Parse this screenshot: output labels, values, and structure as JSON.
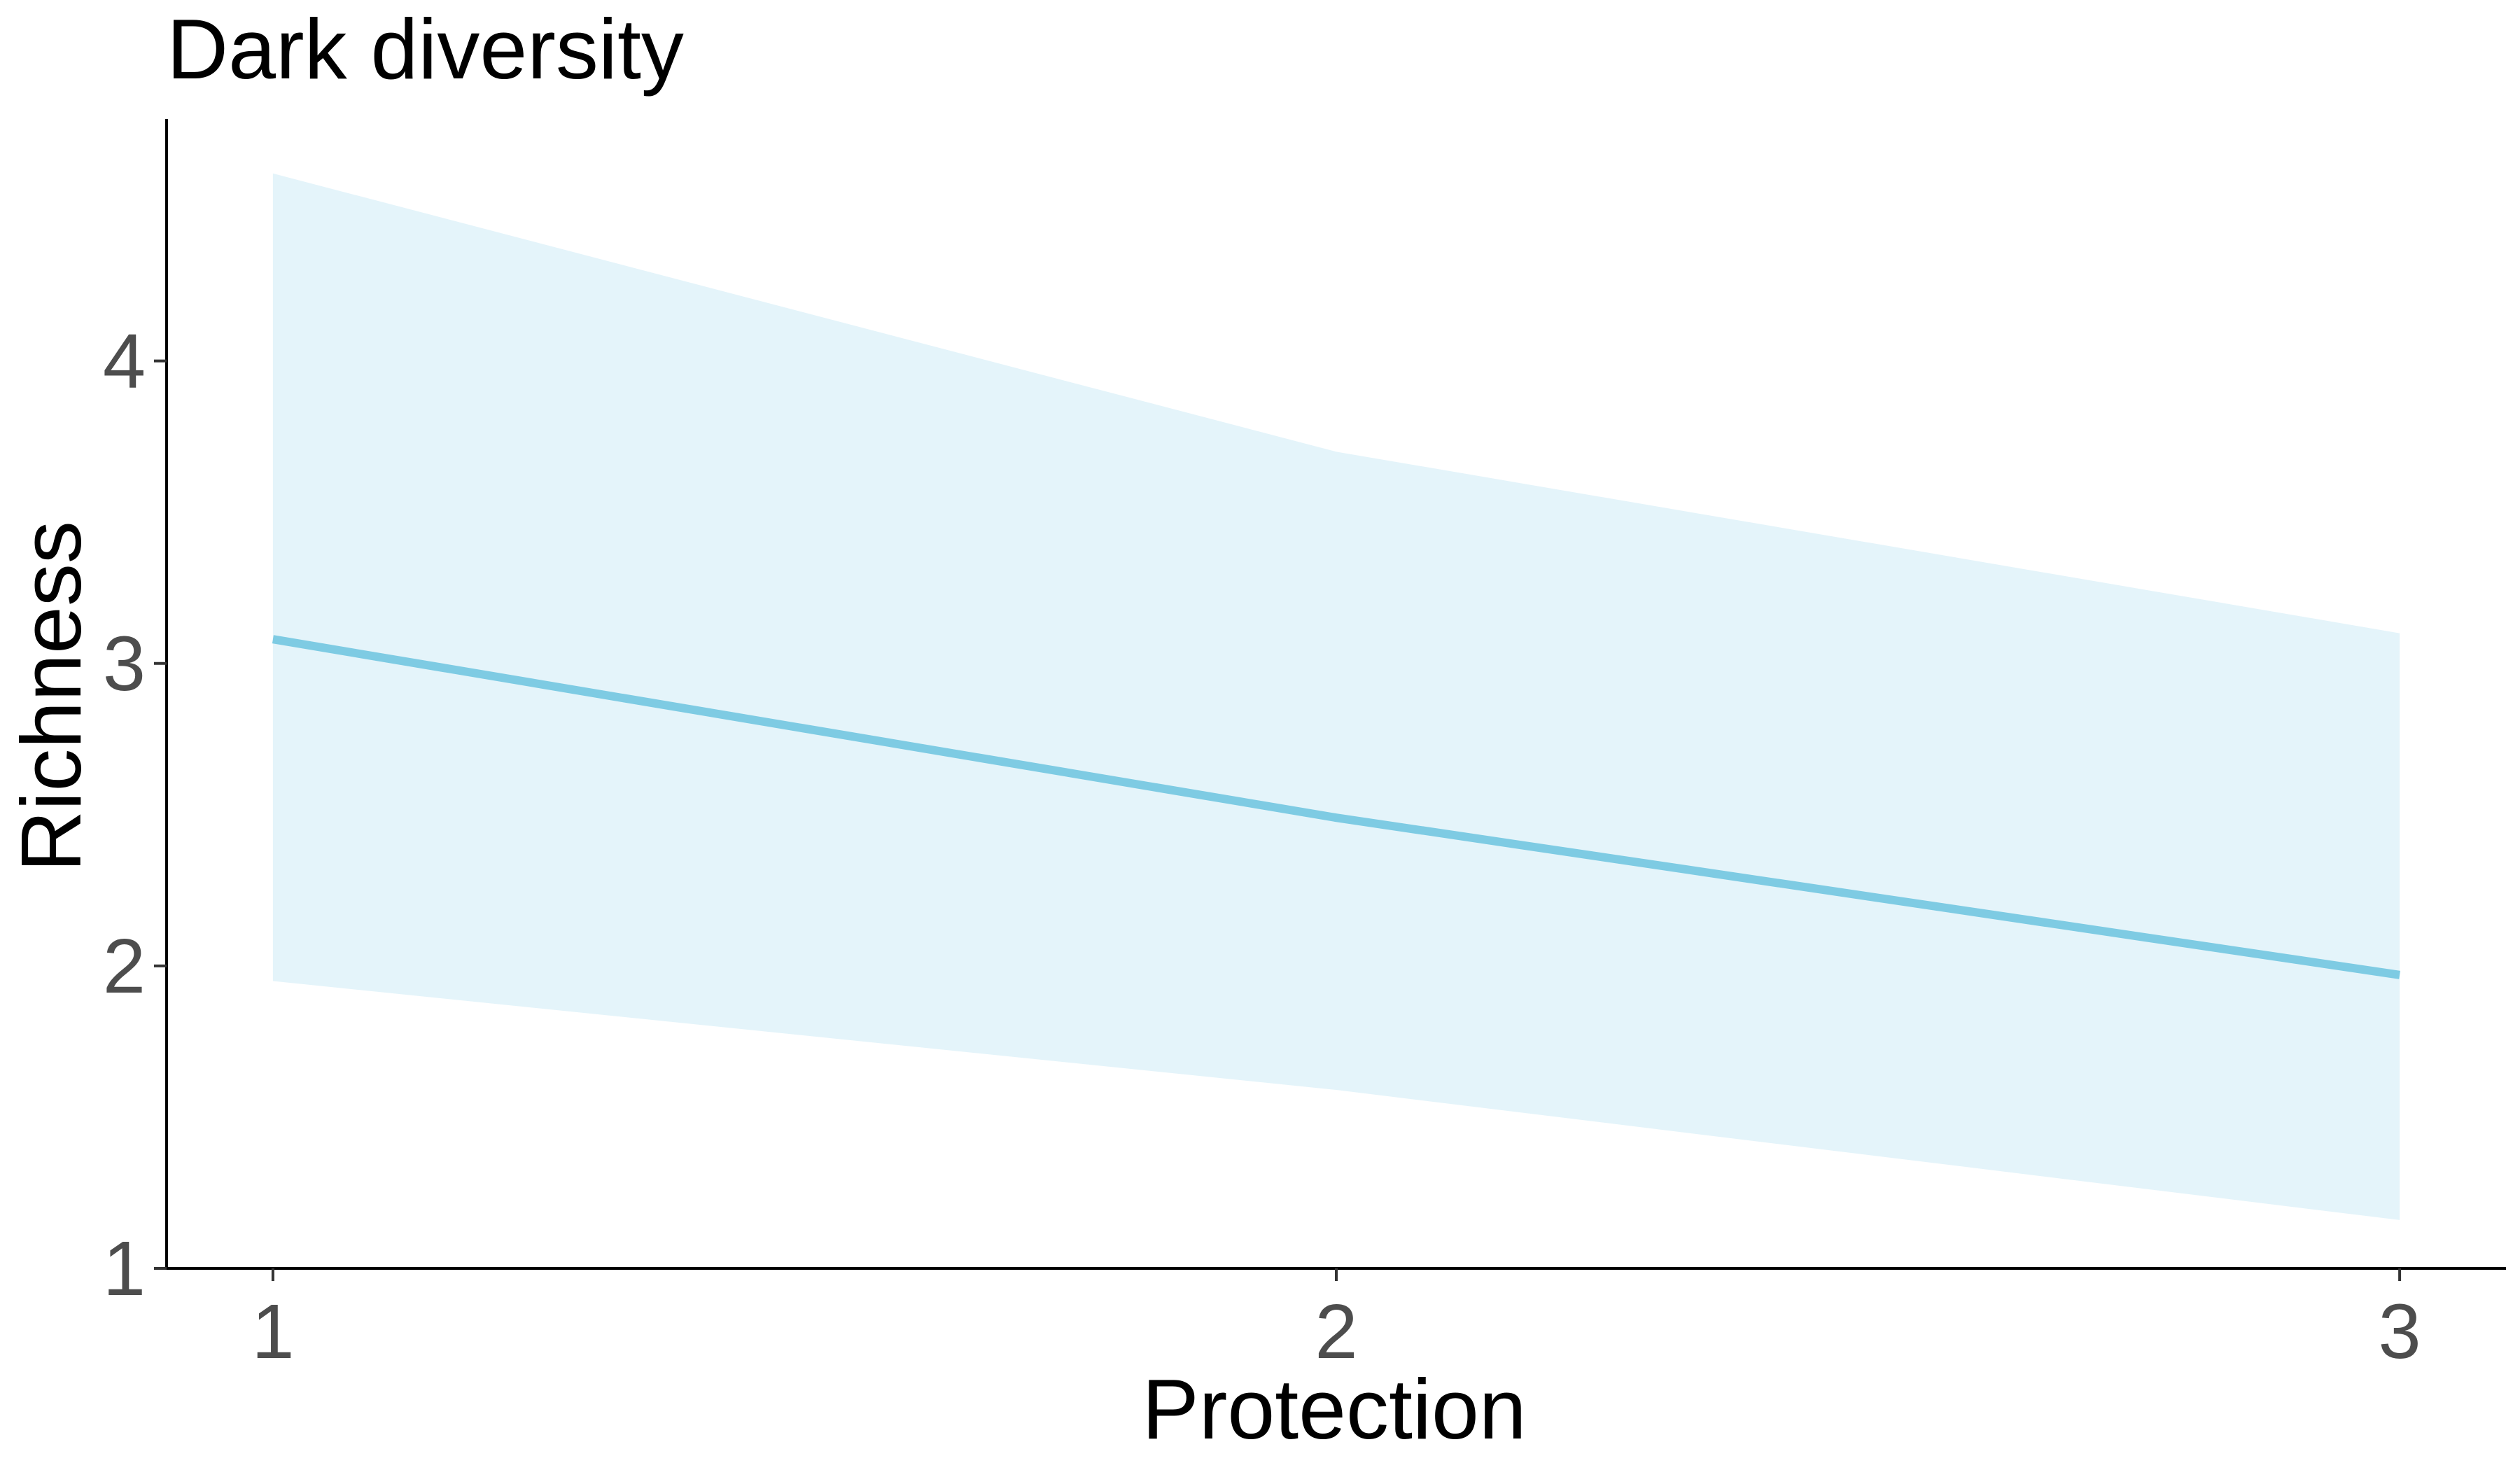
{
  "chart_data": {
    "type": "line",
    "title": "Dark diversity",
    "xlabel": "Protection",
    "ylabel": "Richness",
    "x": [
      1,
      2,
      3
    ],
    "series": [
      {
        "values": [
          3.08,
          2.49,
          1.97
        ],
        "lower": [
          1.95,
          1.59,
          1.16
        ],
        "upper": [
          4.62,
          3.7,
          3.1
        ]
      }
    ],
    "xlim": [
      0.9,
      3.1
    ],
    "ylim": [
      1,
      4.8
    ],
    "x_ticks": [
      1,
      2,
      3
    ],
    "y_ticks": [
      1,
      2,
      3,
      4
    ],
    "grid": false,
    "legend": "none",
    "colors": {
      "line": "#7ecbe3",
      "ribbon": "#e4f4fa",
      "axis": "#000000",
      "tick_text": "#4d4d4d"
    }
  }
}
